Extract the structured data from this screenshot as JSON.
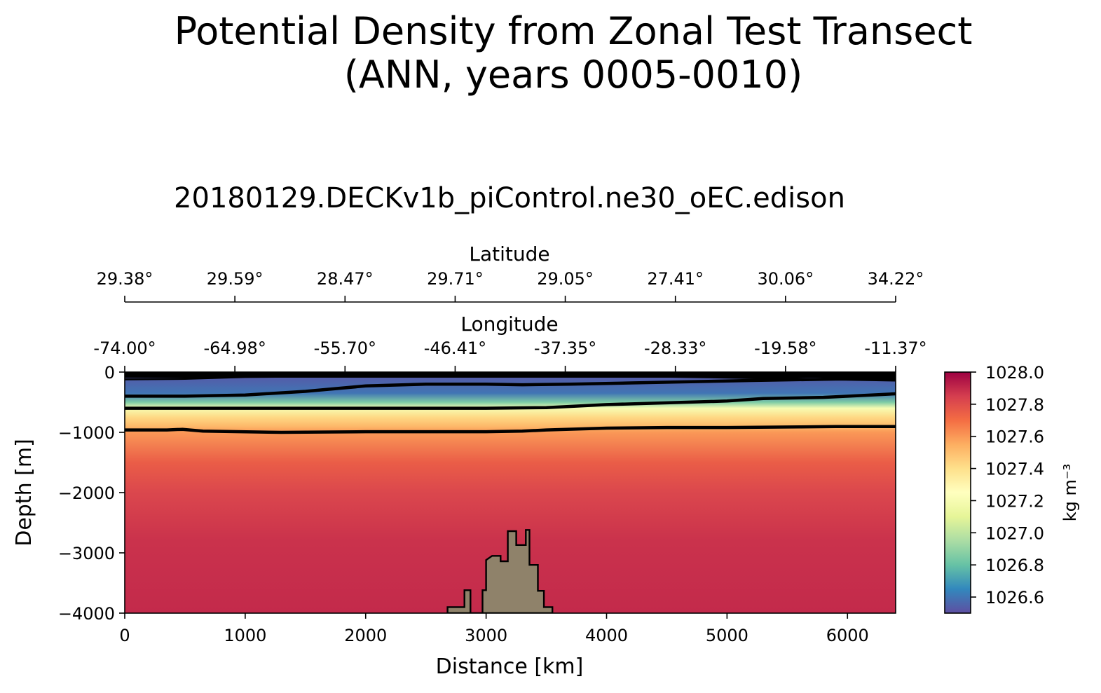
{
  "chart_data": {
    "type": "heatmap",
    "title_line1": "Potential Density from Zonal Test Transect",
    "title_line2": "(ANN, years 0005-0010)",
    "subtitle": "20180129.DECKv1b_piControl.ne30_oEC.edison",
    "xlabel": "Distance [km]",
    "ylabel": "Depth [m]",
    "xlim": [
      0,
      6400
    ],
    "ylim": [
      -4000,
      0
    ],
    "x_ticks": [
      0,
      1000,
      2000,
      3000,
      4000,
      5000,
      6000
    ],
    "x_tick_labels": [
      "0",
      "1000",
      "2000",
      "3000",
      "4000",
      "5000",
      "6000"
    ],
    "y_ticks": [
      0,
      -1000,
      -2000,
      -3000,
      -4000
    ],
    "y_tick_labels": [
      "0",
      "−1000",
      "−2000",
      "−3000",
      "−4000"
    ],
    "secondary_axes": [
      {
        "label": "Latitude",
        "tick_distances": [
          0,
          914.3,
          1828.6,
          2742.9,
          3657.1,
          4571.4,
          5485.7,
          6400
        ],
        "tick_labels": [
          "29.38°",
          "29.59°",
          "28.47°",
          "29.71°",
          "29.05°",
          "27.41°",
          "30.06°",
          "34.22°"
        ]
      },
      {
        "label": "Longitude",
        "tick_distances": [
          0,
          914.3,
          1828.6,
          2742.9,
          3657.1,
          4571.4,
          5485.7,
          6400
        ],
        "tick_labels": [
          "-74.00°",
          "-64.98°",
          "-55.70°",
          "-46.41°",
          "-37.35°",
          "-28.33°",
          "-19.58°",
          "-11.37°"
        ]
      }
    ],
    "colorbar": {
      "label": "kg m⁻³",
      "range": [
        1026.5,
        1028.0
      ],
      "ticks": [
        1028.0,
        1027.8,
        1027.6,
        1027.4,
        1027.2,
        1027.0,
        1026.8,
        1026.6
      ],
      "tick_labels": [
        "1028.0",
        "1027.8",
        "1027.6",
        "1027.4",
        "1027.2",
        "1027.0",
        "1026.8",
        "1026.6"
      ],
      "colormap": "Spectral_r",
      "colors": [
        "#5e4fa2",
        "#3288bd",
        "#66c2a5",
        "#abdda4",
        "#e6f598",
        "#ffffbf",
        "#fee08b",
        "#fdae61",
        "#f46d43",
        "#d53e4f",
        "#9e0142"
      ]
    },
    "density_profile": [
      {
        "depth": 0,
        "value": 1026.45
      },
      {
        "depth": -150,
        "value": 1026.55
      },
      {
        "depth": -350,
        "value": 1026.6
      },
      {
        "depth": -500,
        "value": 1026.85
      },
      {
        "depth": -600,
        "value": 1027.2
      },
      {
        "depth": -750,
        "value": 1027.42
      },
      {
        "depth": -900,
        "value": 1027.52
      },
      {
        "depth": -1000,
        "value": 1027.6
      },
      {
        "depth": -1500,
        "value": 1027.75
      },
      {
        "depth": -2000,
        "value": 1027.82
      },
      {
        "depth": -2800,
        "value": 1027.88
      },
      {
        "depth": -4000,
        "value": 1027.9
      }
    ],
    "contours": [
      {
        "level": "upper",
        "points": [
          [
            0,
            -400
          ],
          [
            500,
            -400
          ],
          [
            1000,
            -380
          ],
          [
            1500,
            -320
          ],
          [
            2000,
            -230
          ],
          [
            2500,
            -200
          ],
          [
            3000,
            -200
          ],
          [
            3300,
            -210
          ],
          [
            3700,
            -200
          ],
          [
            4200,
            -180
          ],
          [
            4700,
            -160
          ],
          [
            5200,
            -140
          ],
          [
            5800,
            -120
          ],
          [
            6400,
            -100
          ]
        ]
      },
      {
        "level": "middle",
        "points": [
          [
            0,
            -600
          ],
          [
            500,
            -600
          ],
          [
            1000,
            -600
          ],
          [
            1500,
            -600
          ],
          [
            2000,
            -600
          ],
          [
            2500,
            -600
          ],
          [
            3000,
            -600
          ],
          [
            3500,
            -590
          ],
          [
            4000,
            -540
          ],
          [
            4500,
            -510
          ],
          [
            5000,
            -480
          ],
          [
            5300,
            -440
          ],
          [
            5800,
            -420
          ],
          [
            6400,
            -360
          ]
        ]
      },
      {
        "level": "lower",
        "points": [
          [
            0,
            -960
          ],
          [
            350,
            -960
          ],
          [
            480,
            -950
          ],
          [
            650,
            -980
          ],
          [
            1300,
            -1000
          ],
          [
            2000,
            -990
          ],
          [
            3000,
            -990
          ],
          [
            3300,
            -980
          ],
          [
            3500,
            -960
          ],
          [
            4000,
            -930
          ],
          [
            4500,
            -920
          ],
          [
            5000,
            -920
          ],
          [
            5600,
            -910
          ],
          [
            5900,
            -905
          ],
          [
            6400,
            -905
          ]
        ]
      },
      {
        "level": "surface-1",
        "points": [
          [
            0,
            -120
          ],
          [
            500,
            -110
          ],
          [
            1000,
            -80
          ],
          [
            2000,
            -60
          ],
          [
            3000,
            -50
          ],
          [
            4000,
            -60
          ],
          [
            5000,
            -90
          ],
          [
            6400,
            -140
          ]
        ]
      },
      {
        "level": "surface-2",
        "points": [
          [
            0,
            -40
          ],
          [
            1000,
            -30
          ],
          [
            2000,
            -25
          ],
          [
            3000,
            -20
          ],
          [
            4000,
            -30
          ],
          [
            5000,
            -50
          ],
          [
            6400,
            -60
          ]
        ]
      }
    ],
    "bathymetry": [
      [
        2680,
        -4000
      ],
      [
        2680,
        -3900
      ],
      [
        2820,
        -3900
      ],
      [
        2820,
        -3620
      ],
      [
        2870,
        -3620
      ],
      [
        2870,
        -4000
      ],
      [
        2970,
        -4000
      ],
      [
        2970,
        -3620
      ],
      [
        3000,
        -3620
      ],
      [
        3000,
        -3120
      ],
      [
        3050,
        -3050
      ],
      [
        3120,
        -3050
      ],
      [
        3120,
        -3140
      ],
      [
        3180,
        -3140
      ],
      [
        3180,
        -2640
      ],
      [
        3250,
        -2640
      ],
      [
        3250,
        -2870
      ],
      [
        3330,
        -2870
      ],
      [
        3330,
        -2620
      ],
      [
        3360,
        -2620
      ],
      [
        3360,
        -3200
      ],
      [
        3430,
        -3200
      ],
      [
        3430,
        -3630
      ],
      [
        3480,
        -3630
      ],
      [
        3480,
        -3900
      ],
      [
        3550,
        -3900
      ],
      [
        3550,
        -4000
      ]
    ]
  }
}
